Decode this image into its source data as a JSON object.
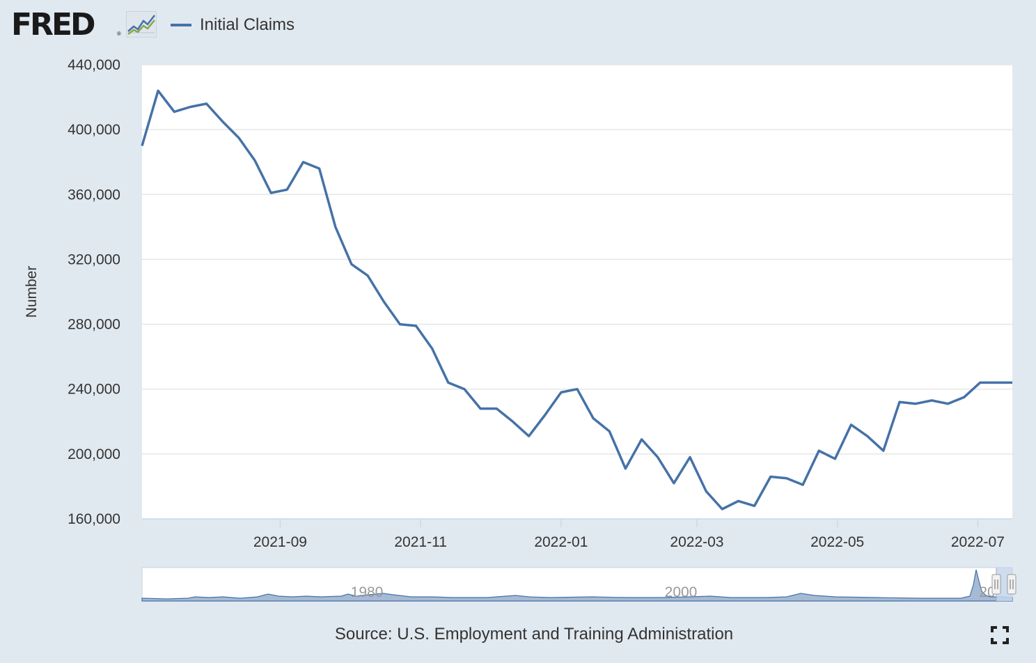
{
  "header": {
    "logo_text": "FRED",
    "logo_reg": "®",
    "legend_label": "Initial Claims"
  },
  "colors": {
    "background": "#e1e9f0",
    "plot_background": "#ffffff",
    "series_line": "#4572a7",
    "gridline": "#e6e6e6",
    "navigator_fill": "#a7bad4",
    "navigator_selection": "#c6d6ec"
  },
  "icons": [
    "fred-chart-icon",
    "fullscreen-icon",
    "navigator-handle-icon"
  ],
  "source": "Source: U.S. Employment and Training Administration",
  "chart_data": {
    "type": "line",
    "title": "",
    "xlabel": "",
    "ylabel": "Number",
    "ylim": [
      160000,
      440000
    ],
    "yticks": [
      160000,
      200000,
      240000,
      280000,
      320000,
      360000,
      400000,
      440000
    ],
    "ytick_labels": [
      "160,000",
      "200,000",
      "240,000",
      "280,000",
      "320,000",
      "360,000",
      "400,000",
      "440,000"
    ],
    "xlim": [
      "2021-07-03",
      "2022-07-16"
    ],
    "xticks": [
      "2021-09-01",
      "2021-11-01",
      "2022-01-01",
      "2022-03-01",
      "2022-05-01",
      "2022-07-01"
    ],
    "xtick_labels": [
      "2021-09",
      "2021-11",
      "2022-01",
      "2022-03",
      "2022-05",
      "2022-07"
    ],
    "grid": true,
    "legend_position": "top-left",
    "series": [
      {
        "name": "Initial Claims",
        "x": [
          "2021-07-03",
          "2021-07-10",
          "2021-07-17",
          "2021-07-24",
          "2021-07-31",
          "2021-08-07",
          "2021-08-14",
          "2021-08-21",
          "2021-08-28",
          "2021-09-04",
          "2021-09-11",
          "2021-09-18",
          "2021-09-25",
          "2021-10-02",
          "2021-10-09",
          "2021-10-16",
          "2021-10-23",
          "2021-10-30",
          "2021-11-06",
          "2021-11-13",
          "2021-11-20",
          "2021-11-27",
          "2021-12-04",
          "2021-12-11",
          "2021-12-18",
          "2021-12-25",
          "2022-01-01",
          "2022-01-08",
          "2022-01-15",
          "2022-01-22",
          "2022-01-29",
          "2022-02-05",
          "2022-02-12",
          "2022-02-19",
          "2022-02-26",
          "2022-03-05",
          "2022-03-12",
          "2022-03-19",
          "2022-03-26",
          "2022-04-02",
          "2022-04-09",
          "2022-04-16",
          "2022-04-23",
          "2022-04-30",
          "2022-05-07",
          "2022-05-14",
          "2022-05-21",
          "2022-05-28",
          "2022-06-04",
          "2022-06-11",
          "2022-06-18",
          "2022-06-25",
          "2022-07-02",
          "2022-07-09",
          "2022-07-16"
        ],
        "values": [
          390000,
          424000,
          411000,
          414000,
          416000,
          405000,
          395000,
          381000,
          361000,
          363000,
          380000,
          376000,
          340000,
          317000,
          310000,
          294000,
          280000,
          279000,
          265000,
          244000,
          240000,
          228000,
          228000,
          220000,
          211000,
          224000,
          238000,
          240000,
          222000,
          214000,
          191000,
          209000,
          198000,
          182000,
          198000,
          177000,
          166000,
          171000,
          168000,
          186000,
          185000,
          181000,
          202000,
          197000,
          218000,
          211000,
          202000,
          232000,
          231000,
          233000,
          231000,
          235000,
          244000,
          244000,
          244000
        ]
      }
    ],
    "navigator": {
      "tick_labels": [
        "1980",
        "2000",
        "20"
      ]
    }
  }
}
